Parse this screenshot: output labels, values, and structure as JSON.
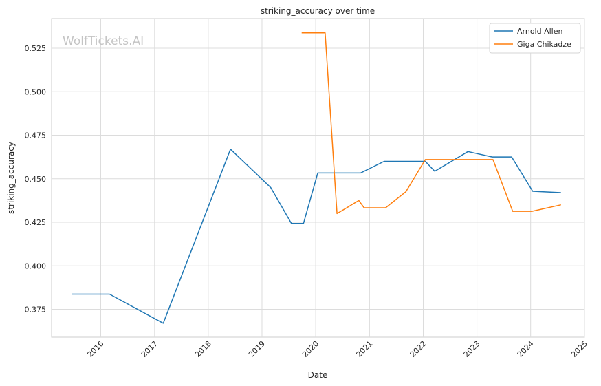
{
  "chart_data": {
    "type": "line",
    "title": "striking_accuracy over time",
    "xlabel": "Date",
    "ylabel": "striking_accuracy",
    "watermark": "WolfTickets.AI",
    "x_range": [
      "2015-02-01",
      "2025-01-01"
    ],
    "ylim": [
      0.359,
      0.542
    ],
    "x_ticks": [
      "2016",
      "2017",
      "2018",
      "2019",
      "2020",
      "2021",
      "2022",
      "2023",
      "2024",
      "2025"
    ],
    "y_ticks": [
      "0.375",
      "0.400",
      "0.425",
      "0.450",
      "0.475",
      "0.500",
      "0.525"
    ],
    "grid": true,
    "legend_position": "top-right",
    "series": [
      {
        "name": "Arnold Allen",
        "color": "#1f77b4",
        "points": [
          [
            "2015-06-20",
            0.3837
          ],
          [
            "2016-03-01",
            0.3837
          ],
          [
            "2017-03-01",
            0.367
          ],
          [
            "2018-06-01",
            0.467
          ],
          [
            "2019-03-01",
            0.445
          ],
          [
            "2019-07-20",
            0.4243
          ],
          [
            "2019-10-10",
            0.4243
          ],
          [
            "2020-01-15",
            0.4533
          ],
          [
            "2020-11-01",
            0.4533
          ],
          [
            "2021-04-10",
            0.46
          ],
          [
            "2022-01-15",
            0.46
          ],
          [
            "2022-03-20",
            0.4543
          ],
          [
            "2022-11-01",
            0.4656
          ],
          [
            "2023-04-15",
            0.4625
          ],
          [
            "2023-08-25",
            0.4625
          ],
          [
            "2024-01-15",
            0.4428
          ],
          [
            "2024-07-25",
            0.442
          ]
        ]
      },
      {
        "name": "Giga Chikadze",
        "color": "#ff7f0e",
        "points": [
          [
            "2019-09-28",
            0.5338
          ],
          [
            "2020-03-05",
            0.5338
          ],
          [
            "2020-05-25",
            0.43
          ],
          [
            "2020-10-20",
            0.4375
          ],
          [
            "2020-11-25",
            0.4333
          ],
          [
            "2021-04-20",
            0.4333
          ],
          [
            "2021-09-05",
            0.4425
          ],
          [
            "2022-01-15",
            0.461
          ],
          [
            "2023-04-20",
            0.461
          ],
          [
            "2023-09-01",
            0.4313
          ],
          [
            "2024-01-10",
            0.4313
          ],
          [
            "2024-07-25",
            0.435
          ]
        ]
      }
    ]
  }
}
